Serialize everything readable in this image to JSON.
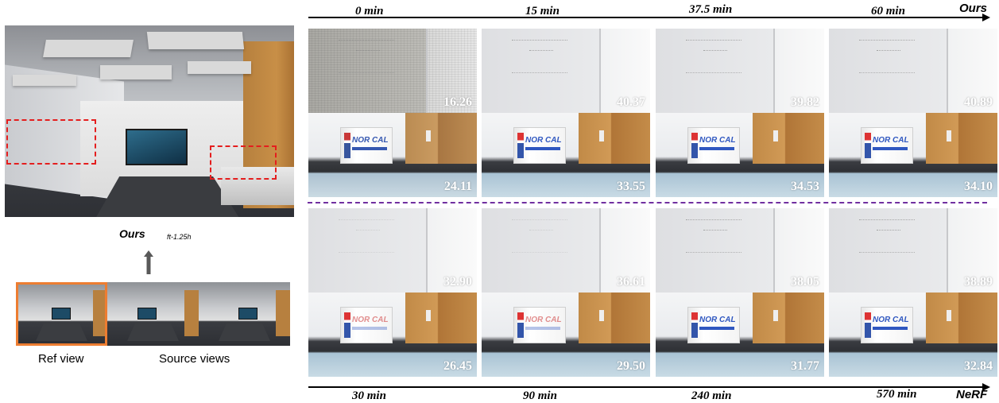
{
  "left_panel": {
    "label_method": "Ours",
    "label_subscript": "ft-1.25h",
    "caption_ref": "Ref view",
    "caption_source": "Source views",
    "colors": {
      "roi_box": "#e41e1e",
      "ref_border": "#ed7d31"
    }
  },
  "top": {
    "method": "Ours",
    "times": [
      "0 min",
      "15 min",
      "37.5 min",
      "60 min"
    ],
    "whiteboard_scores": [
      "16.26",
      "40.37",
      "39.82",
      "40.89"
    ],
    "box_scores": [
      "24.11",
      "33.55",
      "34.53",
      "34.10"
    ]
  },
  "bottom": {
    "method": "NeRF",
    "times": [
      "30 min",
      "90 min",
      "240 min",
      "570 min"
    ],
    "whiteboard_scores": [
      "32.90",
      "36.61",
      "38.05",
      "38.89"
    ],
    "box_scores": [
      "26.45",
      "29.50",
      "31.77",
      "32.84"
    ]
  },
  "carton_text": "NOR CAL",
  "colors": {
    "divider": "#7030a0",
    "score_text": "#ffffff"
  }
}
